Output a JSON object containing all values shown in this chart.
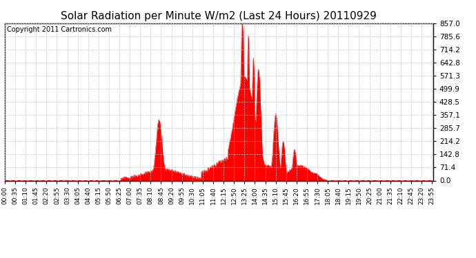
{
  "title": "Solar Radiation per Minute W/m2 (Last 24 Hours) 20110929",
  "copyright_text": "Copyright 2011 Cartronics.com",
  "yticks": [
    0.0,
    71.4,
    142.8,
    214.2,
    285.7,
    357.1,
    428.5,
    499.9,
    571.3,
    642.8,
    714.2,
    785.6,
    857.0
  ],
  "ymax": 857.0,
  "ymin": 0.0,
  "fill_color": "#ff0000",
  "dashed_line_color": "#ff0000",
  "grid_color": "#c8c8c8",
  "background_color": "#ffffff",
  "title_fontsize": 11,
  "copyright_fontsize": 7,
  "tick_fontsize": 6.5,
  "ytick_fontsize": 7.5,
  "xtick_step_minutes": 35
}
